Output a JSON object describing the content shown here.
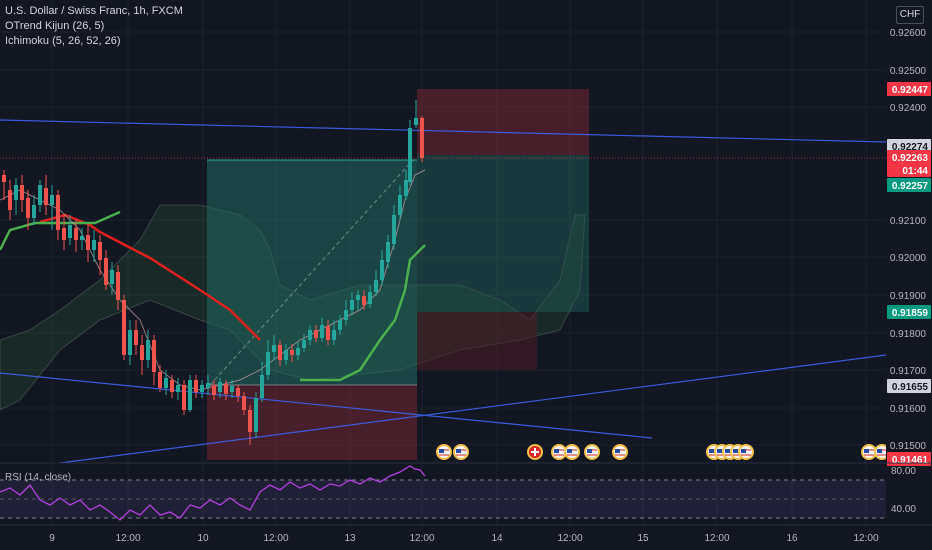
{
  "legend": {
    "symbol": "U.S. Dollar / Swiss Franc, 1h, FXCM",
    "indicator1": "OTrend Kijun (26, 5)",
    "indicator2": "Ichimoku (5, 26, 52, 26)"
  },
  "currency_button": "CHF",
  "price_axis": {
    "ticks": [
      "0.92600",
      "0.92500",
      "0.92400",
      "0.92100",
      "0.92000",
      "0.91900",
      "0.91800",
      "0.91700",
      "0.91600",
      "0.91500"
    ],
    "labels": [
      {
        "text": "0.92447",
        "color": "#f23645"
      },
      {
        "text": "0.92274",
        "color": "#d1d4dc"
      },
      {
        "text": "0.92263",
        "color": "#f23645"
      },
      {
        "text": "01:44",
        "color": "#f23645"
      },
      {
        "text": "0.92257",
        "color": "#089981"
      },
      {
        "text": "0.91859",
        "color": "#089981"
      },
      {
        "text": "0.91655",
        "color": "#d1d4dc"
      },
      {
        "text": "0.91461",
        "color": "#f23645"
      }
    ]
  },
  "time_axis": [
    "9",
    "12:00",
    "10",
    "12:00",
    "13",
    "12:00",
    "14",
    "12:00",
    "15",
    "12:00",
    "16",
    "12:00"
  ],
  "rsi": {
    "label": "RSI (14, close)",
    "ticks": [
      "80.00",
      "40.00"
    ],
    "color": "#b03fe0"
  },
  "colors": {
    "background": "#131722",
    "up": "#26a69a",
    "down": "#ef5350",
    "trendline": "#3a5bd9",
    "kijun_red": "#e01f1f",
    "kijun_green": "#4caf50",
    "target_zone": "#1f5c55",
    "stop_zone": "#5a2530"
  },
  "event_flags": [
    "us-flag",
    "us-flag",
    "swiss-flag",
    "us-flag",
    "us-flag",
    "us-flag",
    "us-flag",
    "us-flag",
    "us-flag",
    "us-flag",
    "us-flag",
    "us-flag",
    "us-flag"
  ]
}
